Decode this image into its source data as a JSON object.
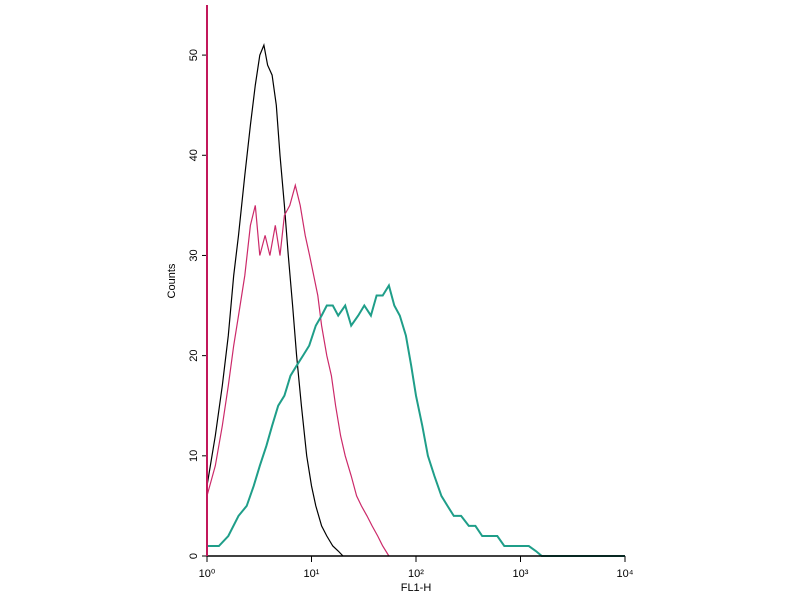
{
  "chart_data": {
    "type": "line",
    "xlabel": "FL1-H",
    "ylabel": "Counts",
    "xscale": "log",
    "xlim": [
      1,
      10000
    ],
    "ylim": [
      0,
      55
    ],
    "xticks": [
      {
        "value": 1,
        "label": "10⁰"
      },
      {
        "value": 10,
        "label": "10¹"
      },
      {
        "value": 100,
        "label": "10²"
      },
      {
        "value": 1000,
        "label": "10³"
      },
      {
        "value": 10000,
        "label": "10⁴"
      }
    ],
    "yticks": [
      0,
      10,
      20,
      30,
      40,
      50
    ],
    "series": [
      {
        "color": "#000000",
        "x": [
          1,
          1.2,
          1.4,
          1.6,
          1.8,
          2,
          2.3,
          2.6,
          2.9,
          3.2,
          3.5,
          3.8,
          4.2,
          4.6,
          5,
          5.5,
          6,
          6.6,
          7.2,
          8,
          9,
          10,
          11,
          12.5,
          14,
          16,
          18,
          20
        ],
        "values": [
          7,
          12,
          17,
          22,
          28,
          32,
          38,
          43,
          47,
          50,
          51,
          49,
          48,
          45,
          40,
          35,
          30,
          25,
          20,
          15,
          10,
          7,
          5,
          3,
          2,
          1,
          0.5,
          0
        ]
      },
      {
        "color": "#cc2a6a",
        "x": [
          1,
          1.2,
          1.4,
          1.6,
          1.8,
          2,
          2.3,
          2.6,
          2.9,
          3.2,
          3.6,
          4,
          4.5,
          5,
          5.5,
          6.2,
          7,
          7.8,
          8.7,
          9.6,
          10.5,
          11.5,
          12.5,
          14,
          15.5,
          17,
          19,
          21,
          24,
          27,
          30,
          34,
          38,
          43,
          48,
          55
        ],
        "values": [
          6,
          9,
          13,
          17,
          21,
          24,
          28,
          33,
          35,
          30,
          32,
          30,
          33,
          30,
          34,
          35,
          37,
          35,
          32,
          30,
          28,
          26,
          23,
          20,
          18,
          15,
          12,
          10,
          8,
          6,
          5,
          4,
          3,
          2,
          1,
          0
        ]
      },
      {
        "color": "#1f9e89",
        "x": [
          1,
          1.3,
          1.6,
          2,
          2.4,
          2.8,
          3.2,
          3.7,
          4.2,
          4.8,
          5.5,
          6.3,
          7.2,
          8.3,
          9.5,
          11,
          12.5,
          14,
          16,
          18,
          21,
          24,
          28,
          32,
          37,
          42,
          48,
          55,
          62,
          70,
          80,
          90,
          100,
          115,
          130,
          150,
          175,
          200,
          230,
          270,
          320,
          370,
          430,
          500,
          600,
          700,
          850,
          1000,
          1200,
          1400,
          1600,
          10000
        ],
        "values": [
          1,
          1,
          2,
          4,
          5,
          7,
          9,
          11,
          13,
          15,
          16,
          18,
          19,
          20,
          21,
          23,
          24,
          25,
          25,
          24,
          25,
          23,
          24,
          25,
          24,
          26,
          26,
          27,
          25,
          24,
          22,
          19,
          16,
          13,
          10,
          8,
          6,
          5,
          4,
          4,
          3,
          3,
          2,
          2,
          2,
          1,
          1,
          1,
          1,
          0.5,
          0,
          0
        ]
      }
    ]
  }
}
